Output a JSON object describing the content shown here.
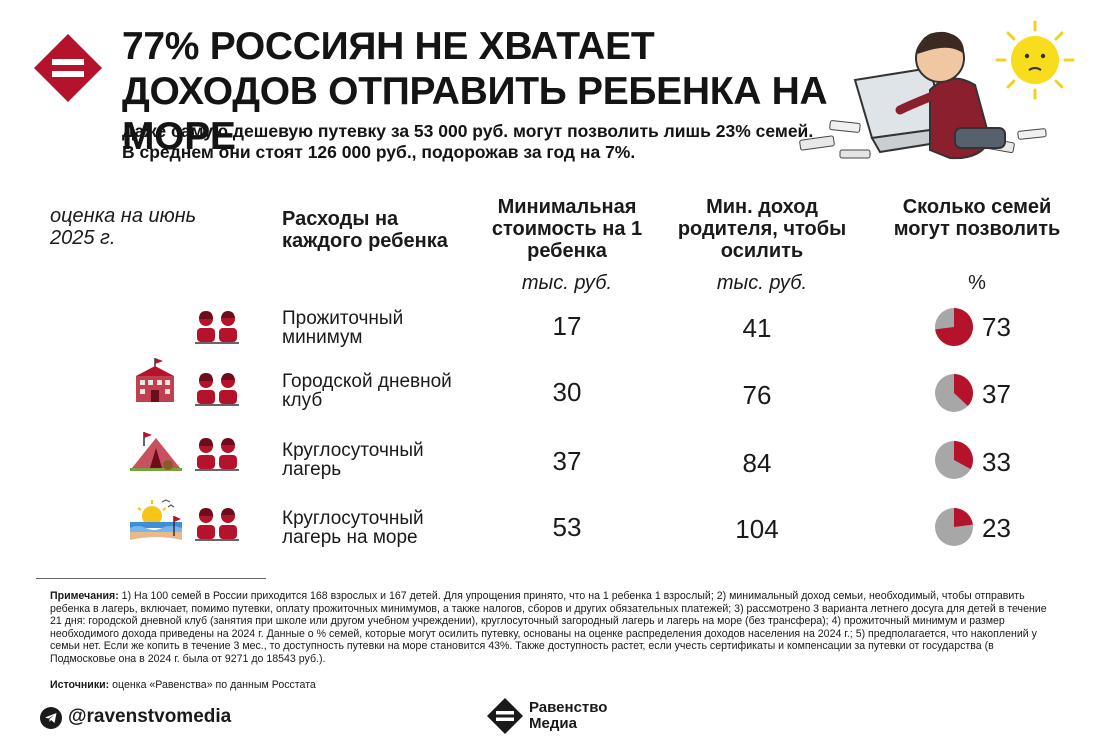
{
  "header": {
    "title": "77% россиян не хватает доходов отправить ребенка на море",
    "subtitle": "Даже самую дешевую путевку за 53 000 руб. могут позволить лишь 23% семей. В среднем они стоят 126 000 руб., подорожав за год на 7%."
  },
  "table": {
    "estimate_label": "оценка на июнь 2025 г.",
    "columns": [
      {
        "label": "Расходы на каждого ребенка",
        "unit": ""
      },
      {
        "label": "Минимальная стоимость на 1 ребенка",
        "unit": "тыс. руб."
      },
      {
        "label": "Мин. доход родителя, чтобы осилить",
        "unit": "тыс. руб."
      },
      {
        "label": "Сколько семей могут позволить",
        "unit": "%"
      }
    ],
    "rows": [
      {
        "label": "Прожиточный минимум",
        "min_cost": "17",
        "min_income": "41",
        "share": "73",
        "share_value": 73,
        "icons": [
          "family-icon"
        ]
      },
      {
        "label": "Городской дневной клуб",
        "min_cost": "30",
        "min_income": "76",
        "share": "37",
        "share_value": 37,
        "icons": [
          "school-icon",
          "family-icon"
        ]
      },
      {
        "label": "Круглосуточный лагерь",
        "min_cost": "37",
        "min_income": "84",
        "share": "33",
        "share_value": 33,
        "icons": [
          "tent-icon",
          "family-icon"
        ]
      },
      {
        "label": "Круглосуточный лагерь на море",
        "min_cost": "53",
        "min_income": "104",
        "share": "23",
        "share_value": 23,
        "icons": [
          "beach-icon",
          "family-icon"
        ]
      }
    ]
  },
  "colors": {
    "accent": "#b5122b",
    "pie_rest": "#a7a7a7",
    "text": "#1a1a1a"
  },
  "footer": {
    "notes_label": "Примечания:",
    "notes_text": " 1) На 100 семей в России приходится 168 взрослых и 167 детей. Для упрощения принято, что на 1 ребенка 1 взрослый; 2) минимальный доход семьи, необходимый, чтобы отправить ребенка в лагерь, включает, помимо путевки, оплату прожиточных минимумов, а также налогов, сборов и других обязательных платежей; 3) рассмотрено 3 варианта летнего досуга для детей в течение 21 дня: городской дневной клуб (занятия при школе или другом учебном учреждении), круглосуточный загородный лагерь и лагерь на море (без трансфера); 4) прожиточный минимум и размер необходимого дохода приведены на 2024 г. Данные о % семей, которые могут осилить путевку, основаны на оценке распределения доходов населения на 2024 г.; 5) предполагается, что накоплений у семьи нет. Если же копить в течение 3 мес., то доступность путевки на море становится 43%. Также доступность растет, если учесть сертификаты и компенсации за путевки от государства (в Подмосковье она в 2024 г. была от 9271 до 18543 руб.).",
    "sources_label": "Источники:",
    "sources_text": " оценка «Равенства» по данным Росстата",
    "telegram_handle": "@ravenstvomedia",
    "brand_line1": "Равенство",
    "brand_line2": "Медиа"
  }
}
